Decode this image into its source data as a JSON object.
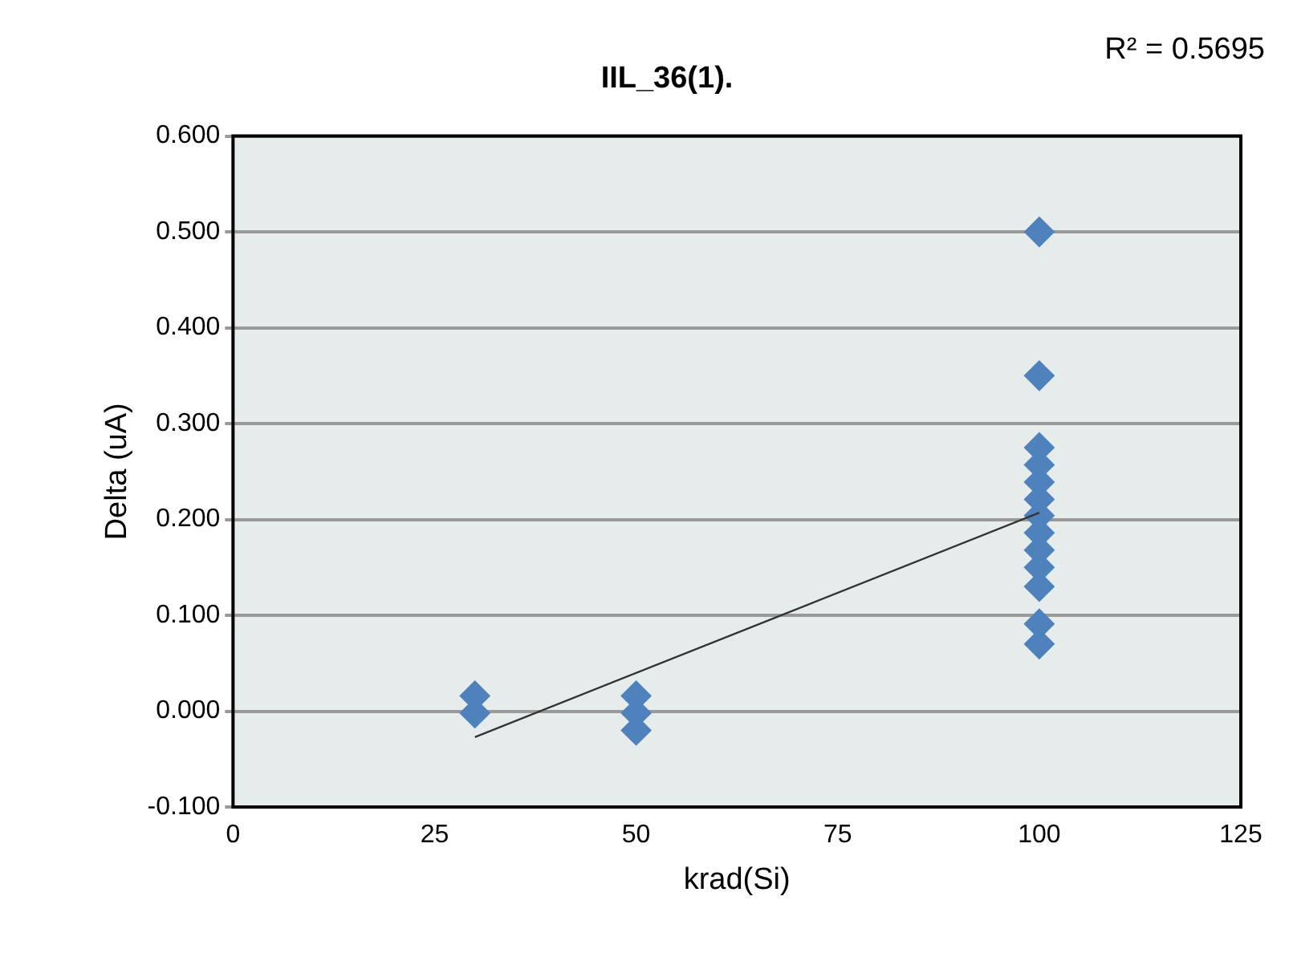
{
  "chart_data": {
    "type": "scatter",
    "title": "IIL_36(1).",
    "xlabel": "krad(Si)",
    "ylabel": "Delta (uA)",
    "annotations": [
      "R² = 0.5695"
    ],
    "series": [
      {
        "color": "#4f81bd",
        "marker": "diamond",
        "x": [
          30,
          30,
          50,
          50,
          50,
          100,
          100,
          100,
          100,
          100,
          100,
          100,
          100,
          100,
          100,
          100,
          100,
          100
        ],
        "values": [
          0.016,
          -0.002,
          0.016,
          -0.002,
          -0.02,
          0.5,
          0.35,
          0.275,
          0.257,
          0.239,
          0.221,
          0.204,
          0.186,
          0.168,
          0.15,
          0.13,
          0.091,
          0.07
        ]
      },
      {
        "type": "line",
        "color": "#333333",
        "marker": "none",
        "x": [
          30,
          100
        ],
        "values": [
          -0.027,
          0.207
        ]
      }
    ],
    "xlim": [
      0,
      125
    ],
    "xticks": [
      0,
      25,
      50,
      75,
      100,
      125
    ],
    "ylim": [
      -0.1,
      0.6
    ],
    "yticks": [
      {
        "value": -0.1,
        "label": "-0.100"
      },
      {
        "value": 0,
        "label": "0.000"
      },
      {
        "value": 0.1,
        "label": "0.100"
      },
      {
        "value": 0.2,
        "label": "0.200"
      },
      {
        "value": 0.3,
        "label": "0.300"
      },
      {
        "value": 0.4,
        "label": "0.400"
      },
      {
        "value": 0.5,
        "label": "0.500"
      },
      {
        "value": 0.6,
        "label": "0.600"
      }
    ],
    "grid": "y",
    "legend": false
  }
}
